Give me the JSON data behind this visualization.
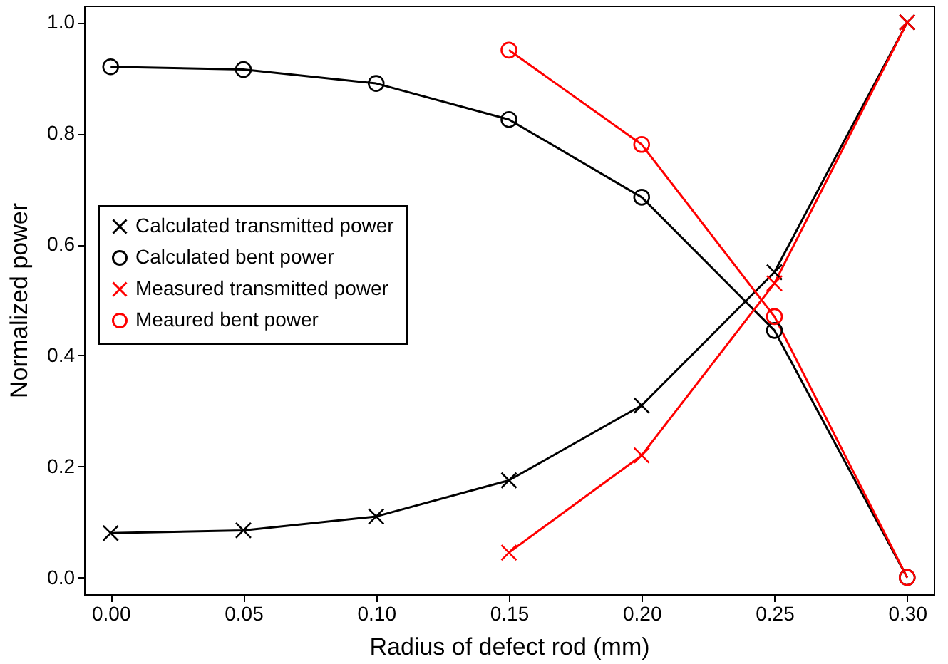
{
  "chart_data": {
    "type": "line",
    "xlabel": "Radius of defect rod (mm)",
    "ylabel": "Normalized power",
    "xlim": [
      -0.01,
      0.31
    ],
    "ylim": [
      -0.03,
      1.03
    ],
    "xticks": [
      {
        "value": 0,
        "label": "0.00"
      },
      0.05,
      {
        "value": 0.1,
        "label": "0.10"
      },
      0.15,
      {
        "value": 0.2,
        "label": "0.20"
      },
      0.25,
      {
        "value": 0.3,
        "label": "0.30"
      }
    ],
    "yticks": [
      {
        "value": 0,
        "label": "0.0"
      },
      0.2,
      0.4,
      0.6,
      0.8,
      {
        "value": 1,
        "label": "1.0"
      }
    ],
    "grid": false,
    "legend": "left",
    "line_style": "solid",
    "series": [
      {
        "name": "Calculated transmitted power",
        "color": "#000000",
        "marker": "cross",
        "x": [
          0,
          0.05,
          0.1,
          0.15,
          0.2,
          0.25,
          0.3
        ],
        "values": [
          0.08,
          0.085,
          0.11,
          0.175,
          0.31,
          0.55,
          1.0
        ]
      },
      {
        "name": "Calculated bent power",
        "color": "#000000",
        "marker": "circle",
        "x": [
          0,
          0.05,
          0.1,
          0.15,
          0.2,
          0.25,
          0.3
        ],
        "values": [
          0.92,
          0.915,
          0.89,
          0.825,
          0.685,
          0.445,
          0.0
        ]
      },
      {
        "name": "Measured transmitted power",
        "color": "#ff0000",
        "marker": "cross",
        "x": [
          0.15,
          0.2,
          0.25,
          0.3
        ],
        "values": [
          0.045,
          0.22,
          0.53,
          1.0
        ]
      },
      {
        "name": "Meaured bent power",
        "color": "#ff0000",
        "marker": "circle",
        "x": [
          0.15,
          0.2,
          0.25,
          0.3
        ],
        "values": [
          0.95,
          0.78,
          0.47,
          0.0
        ]
      }
    ]
  }
}
